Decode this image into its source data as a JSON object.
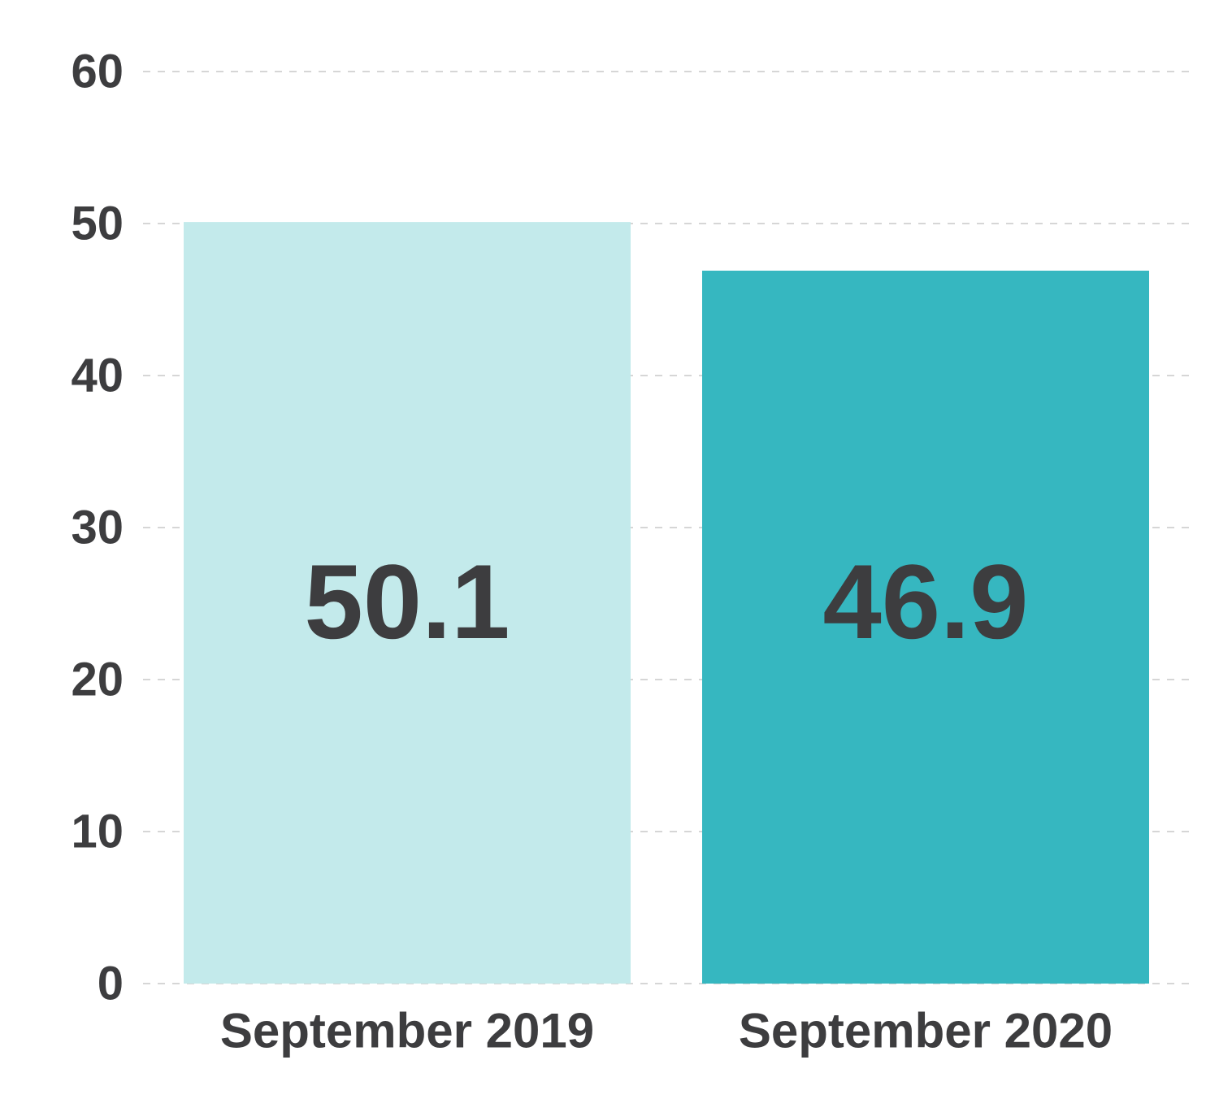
{
  "chart_data": {
    "type": "bar",
    "categories": [
      "September 2019",
      "September 2020"
    ],
    "values": [
      50.1,
      46.9
    ],
    "value_labels": [
      "50.1",
      "46.9"
    ],
    "bar_colors": [
      "#c3eaeb",
      "#36b7c0"
    ],
    "ylim": [
      0,
      60
    ],
    "yticks": [
      0,
      10,
      20,
      30,
      40,
      50,
      60
    ],
    "ytick_labels": [
      "0",
      "10",
      "20",
      "30",
      "40",
      "50",
      "60"
    ],
    "grid": true,
    "title": "",
    "xlabel": "",
    "ylabel": ""
  }
}
